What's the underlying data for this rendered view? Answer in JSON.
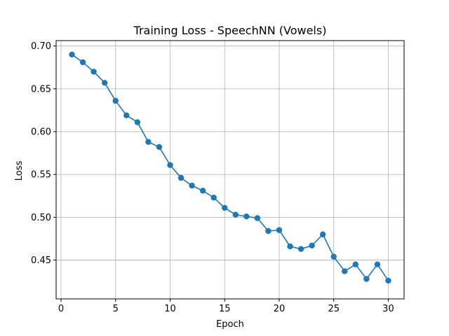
{
  "chart_data": {
    "type": "line",
    "title": "Training Loss - SpeechNN (Vowels)",
    "xlabel": "Epoch",
    "ylabel": "Loss",
    "xlim": [
      -0.45,
      31.45
    ],
    "ylim": [
      0.4047,
      0.7063
    ],
    "xticks": [
      0,
      5,
      10,
      15,
      20,
      25,
      30
    ],
    "xtick_labels": [
      "0",
      "5",
      "10",
      "15",
      "20",
      "25",
      "30"
    ],
    "yticks": [
      0.45,
      0.5,
      0.55,
      0.6,
      0.65,
      0.7
    ],
    "ytick_labels": [
      "0.45",
      "0.50",
      "0.55",
      "0.60",
      "0.65",
      "0.70"
    ],
    "grid": true,
    "color": "#1f77b4",
    "marker": "circle",
    "series": [
      {
        "x": [
          1,
          2,
          3,
          4,
          5,
          6,
          7,
          8,
          9,
          10,
          11,
          12,
          13,
          14,
          15,
          16,
          17,
          18,
          19,
          20,
          21,
          22,
          23,
          24,
          25,
          26,
          27,
          28,
          29,
          30
        ],
        "values": [
          0.69,
          0.681,
          0.67,
          0.657,
          0.636,
          0.619,
          0.611,
          0.588,
          0.582,
          0.561,
          0.546,
          0.537,
          0.531,
          0.523,
          0.511,
          0.503,
          0.501,
          0.499,
          0.484,
          0.485,
          0.466,
          0.463,
          0.467,
          0.48,
          0.454,
          0.437,
          0.445,
          0.428,
          0.445,
          0.426
        ]
      }
    ]
  }
}
